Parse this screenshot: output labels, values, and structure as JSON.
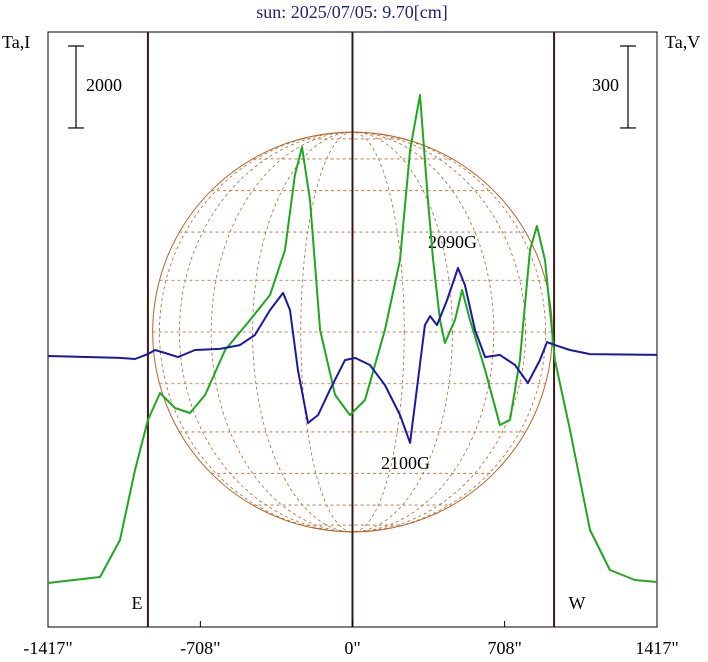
{
  "chart_data": {
    "type": "line",
    "title": "sun: 2025/07/05: 9.70[cm]",
    "ylabel": "Ta,I",
    "y2label": "Ta,V",
    "xlim": [
      -1417,
      1417
    ],
    "xticks": [
      {
        "value": -1417,
        "label": "-1417\""
      },
      {
        "value": -708,
        "label": "-708\""
      },
      {
        "value": 0,
        "label": "0\""
      },
      {
        "value": 708,
        "label": "708\""
      },
      {
        "value": 1417,
        "label": "1417\""
      }
    ],
    "ylim": [
      -1074,
      13444
    ],
    "y2lim": [
      -992,
      1186
    ],
    "scale_bars": [
      2000,
      300
    ],
    "reference_lines": [
      -952,
      0,
      938
    ],
    "sun_radius": 930,
    "limb_labels": [
      "E",
      "W"
    ],
    "annotations": [
      "2090G",
      "2100G"
    ],
    "series": [
      {
        "name": "Ta,I",
        "color": "#1fa71f",
        "x": [
          -1417,
          -1175,
          -1082,
          -1012,
          -952,
          -896,
          -826,
          -756,
          -686,
          -593,
          -477,
          -384,
          -314,
          -268,
          -235,
          -198,
          -151,
          -81,
          -12,
          58,
          151,
          221,
          268,
          314,
          351,
          375,
          407,
          430,
          477,
          510,
          547,
          617,
          686,
          733,
          779,
          826,
          858,
          896,
          942,
          1012,
          1105,
          1198,
          1314,
          1417
        ],
        "values": [
          0,
          146,
          1049,
          2757,
          3977,
          4636,
          4270,
          4148,
          4587,
          5685,
          6417,
          7027,
          8125,
          9955,
          10638,
          9345,
          6173,
          4587,
          4099,
          4465,
          6173,
          7881,
          10565,
          11907,
          9345,
          7881,
          6417,
          5856,
          6417,
          7149,
          6417,
          5197,
          3855,
          3977,
          5441,
          8125,
          8711,
          7881,
          5441,
          3733,
          1293,
          317,
          73,
          24
        ]
      },
      {
        "name": "Ta,V",
        "color": "#1a1aa0",
        "axis": "y2",
        "x": [
          -1417,
          -1082,
          -1012,
          -952,
          -919,
          -872,
          -812,
          -733,
          -617,
          -524,
          -454,
          -384,
          -323,
          -291,
          -254,
          -207,
          -160,
          -105,
          -35,
          12,
          81,
          151,
          221,
          268,
          305,
          337,
          361,
          393,
          440,
          491,
          523,
          570,
          617,
          686,
          756,
          816,
          872,
          905,
          942,
          1012,
          1105,
          1417
        ],
        "values": [
          0,
          -7,
          -11,
          7,
          22,
          11,
          -4,
          22,
          26,
          40,
          77,
          168,
          231,
          168,
          -51,
          -245,
          -216,
          -124,
          -15,
          -7,
          -33,
          -106,
          -216,
          -318,
          -88,
          113,
          146,
          113,
          205,
          322,
          260,
          95,
          -4,
          4,
          -33,
          -99,
          -15,
          51,
          40,
          22,
          7,
          4
        ]
      }
    ]
  }
}
